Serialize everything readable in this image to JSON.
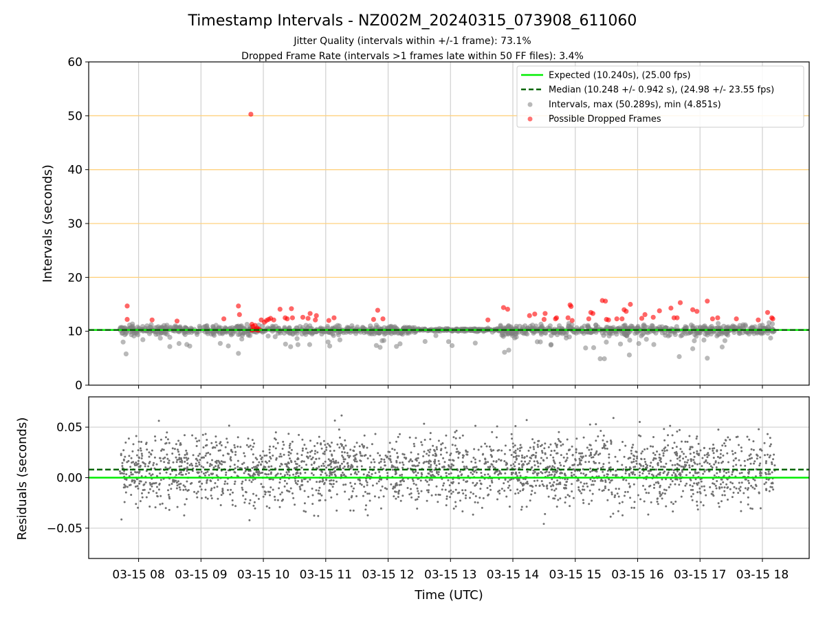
{
  "figure": {
    "title": "Timestamp Intervals - NZ002M_20240315_073908_611060",
    "subtitle_line1": "Jitter Quality (intervals within +/-1 frame): 73.1%",
    "subtitle_line2": "Dropped Frame Rate (intervals >1 frames late within 50 FF files): 3.4%",
    "xlabel": "Time (UTC)",
    "x_tick_labels": [
      "03-15 08",
      "03-15 09",
      "03-15 10",
      "03-15 11",
      "03-15 12",
      "03-15 13",
      "03-15 14",
      "03-15 15",
      "03-15 16",
      "03-15 17",
      "03-15 18"
    ],
    "colors": {
      "expected": "#00ee00",
      "median": "#006400",
      "intervals": "#808080",
      "dropped": "#ff0000",
      "threshold_lines": "#ffd27f",
      "grid": "#cfcfcf",
      "residual_points": "#707070"
    }
  },
  "chart_data": [
    {
      "type": "scatter",
      "panel": "top",
      "ylabel": "Intervals (seconds)",
      "ylim": [
        0,
        60
      ],
      "y_tick_labels": [
        "0",
        "10",
        "20",
        "30",
        "40",
        "50",
        "60"
      ],
      "x_axis": "time (UTC), 2024-03-15",
      "xlim": [
        "07:12",
        "18:45"
      ],
      "grid": "vertical at x ticks",
      "horizontal_reference_lines": [
        20,
        30,
        40,
        50
      ],
      "expected_interval": 10.24,
      "median_interval": 10.248,
      "legend_position": "top-right",
      "legend": [
        {
          "label": "Expected (10.240s), (25.00 fps)",
          "style": "solid line"
        },
        {
          "label": "Median (10.248 +/- 0.942 s), (24.98 +/- 23.55 fps)",
          "style": "dashed line"
        },
        {
          "label": "Intervals, max (50.289s), min (4.851s)",
          "style": "gray dot"
        },
        {
          "label": "Possible Dropped Frames",
          "style": "red dot"
        }
      ],
      "intervals_summary": {
        "max": 50.289,
        "min": 4.851
      },
      "dropped_frames": [
        {
          "x": "07:49",
          "y": 14.7
        },
        {
          "x": "07:49",
          "y": 12.2
        },
        {
          "x": "08:13",
          "y": 12.1
        },
        {
          "x": "08:37",
          "y": 11.9
        },
        {
          "x": "09:22",
          "y": 12.3
        },
        {
          "x": "09:36",
          "y": 14.7
        },
        {
          "x": "09:37",
          "y": 13.1
        },
        {
          "x": "09:48",
          "y": 50.289
        },
        {
          "x": "09:49",
          "y": 11.3
        },
        {
          "x": "09:49",
          "y": 10.2
        },
        {
          "x": "09:50",
          "y": 10.9
        },
        {
          "x": "09:51",
          "y": 10.4
        },
        {
          "x": "09:52",
          "y": 11.1
        },
        {
          "x": "09:53",
          "y": 10.3
        },
        {
          "x": "09:54",
          "y": 10.6
        },
        {
          "x": "09:55",
          "y": 10.2
        },
        {
          "x": "09:56",
          "y": 10.4
        },
        {
          "x": "09:58",
          "y": 12.1
        },
        {
          "x": "10:01",
          "y": 11.7
        },
        {
          "x": "10:03",
          "y": 12.0
        },
        {
          "x": "10:05",
          "y": 12.2
        },
        {
          "x": "10:07",
          "y": 12.4
        },
        {
          "x": "10:10",
          "y": 12.1
        },
        {
          "x": "10:16",
          "y": 14.1
        },
        {
          "x": "10:21",
          "y": 12.5
        },
        {
          "x": "10:23",
          "y": 12.3
        },
        {
          "x": "10:27",
          "y": 14.2
        },
        {
          "x": "10:28",
          "y": 12.5
        },
        {
          "x": "10:38",
          "y": 12.6
        },
        {
          "x": "10:43",
          "y": 12.4
        },
        {
          "x": "10:45",
          "y": 13.3
        },
        {
          "x": "10:50",
          "y": 12.1
        },
        {
          "x": "10:51",
          "y": 12.9
        },
        {
          "x": "11:03",
          "y": 12.0
        },
        {
          "x": "11:08",
          "y": 12.5
        },
        {
          "x": "11:46",
          "y": 12.2
        },
        {
          "x": "11:50",
          "y": 13.9
        },
        {
          "x": "11:55",
          "y": 12.3
        },
        {
          "x": "13:36",
          "y": 12.1
        },
        {
          "x": "13:51",
          "y": 14.4
        },
        {
          "x": "13:55",
          "y": 14.1
        },
        {
          "x": "14:16",
          "y": 12.9
        },
        {
          "x": "14:21",
          "y": 13.2
        },
        {
          "x": "14:30",
          "y": 12.2
        },
        {
          "x": "14:31",
          "y": 13.3
        },
        {
          "x": "14:41",
          "y": 12.3
        },
        {
          "x": "14:42",
          "y": 12.5
        },
        {
          "x": "14:53",
          "y": 12.5
        },
        {
          "x": "14:55",
          "y": 14.9
        },
        {
          "x": "14:56",
          "y": 14.6
        },
        {
          "x": "14:57",
          "y": 12.0
        },
        {
          "x": "15:13",
          "y": 12.3
        },
        {
          "x": "15:15",
          "y": 13.5
        },
        {
          "x": "15:17",
          "y": 13.3
        },
        {
          "x": "15:26",
          "y": 15.7
        },
        {
          "x": "15:29",
          "y": 15.6
        },
        {
          "x": "15:30",
          "y": 12.2
        },
        {
          "x": "15:32",
          "y": 12.1
        },
        {
          "x": "15:40",
          "y": 12.3
        },
        {
          "x": "15:45",
          "y": 12.3
        },
        {
          "x": "15:47",
          "y": 14.0
        },
        {
          "x": "15:49",
          "y": 13.7
        },
        {
          "x": "15:53",
          "y": 15.0
        },
        {
          "x": "16:04",
          "y": 12.4
        },
        {
          "x": "16:07",
          "y": 13.1
        },
        {
          "x": "16:15",
          "y": 12.6
        },
        {
          "x": "16:21",
          "y": 13.8
        },
        {
          "x": "16:32",
          "y": 14.3
        },
        {
          "x": "16:35",
          "y": 12.5
        },
        {
          "x": "16:38",
          "y": 12.5
        },
        {
          "x": "16:41",
          "y": 15.3
        },
        {
          "x": "16:53",
          "y": 14.0
        },
        {
          "x": "16:57",
          "y": 13.7
        },
        {
          "x": "17:07",
          "y": 15.6
        },
        {
          "x": "17:12",
          "y": 12.3
        },
        {
          "x": "17:17",
          "y": 12.5
        },
        {
          "x": "17:35",
          "y": 12.3
        },
        {
          "x": "17:56",
          "y": 12.1
        },
        {
          "x": "18:05",
          "y": 13.5
        },
        {
          "x": "18:09",
          "y": 12.5
        },
        {
          "x": "18:10",
          "y": 12.3
        }
      ]
    },
    {
      "type": "scatter",
      "panel": "bottom",
      "ylabel": "Residuals (seconds)",
      "ylim": [
        -0.08,
        0.08
      ],
      "y_tick_labels": [
        "−0.05",
        "0.00",
        "0.05"
      ],
      "expected_residual": 0.0,
      "median_residual": 0.008,
      "grid": "both axes"
    }
  ]
}
